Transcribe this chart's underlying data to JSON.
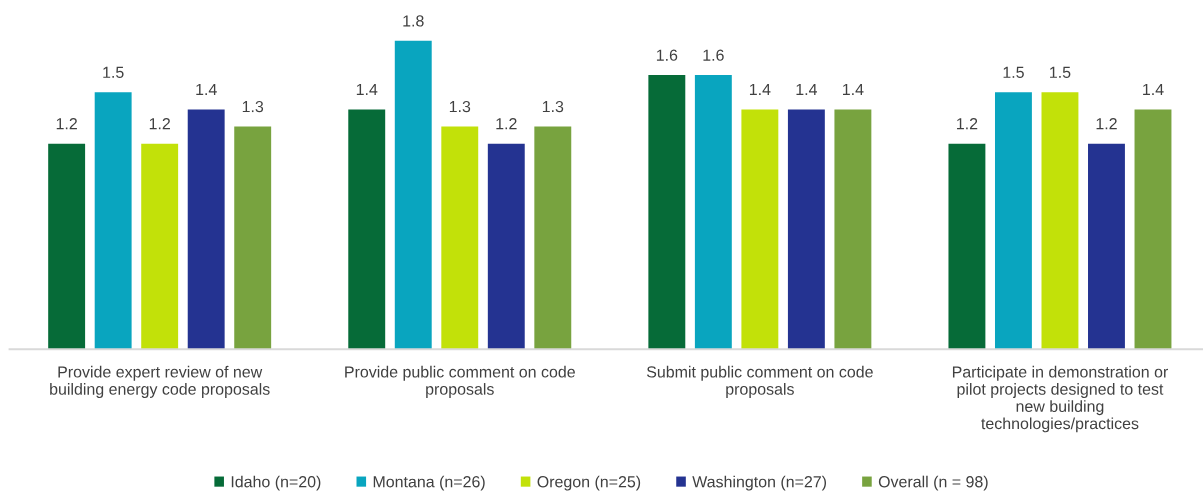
{
  "chart_data": {
    "type": "bar",
    "categories": [
      "Provide expert review of new\nbuilding energy code proposals",
      "Provide public comment on code\nproposals",
      "Submit public comment on code\nproposals",
      "Participate in demonstration or\npilot projects designed to test\nnew building\ntechnologies/practices"
    ],
    "series": [
      {
        "name": "Idaho (n=20)",
        "color": "#066b38",
        "values": [
          1.2,
          1.4,
          1.6,
          1.2
        ]
      },
      {
        "name": "Montana (n=26)",
        "color": "#09a5bf",
        "values": [
          1.5,
          1.8,
          1.6,
          1.5
        ]
      },
      {
        "name": "Oregon (n=25)",
        "color": "#c2e109",
        "values": [
          1.2,
          1.3,
          1.4,
          1.5
        ]
      },
      {
        "name": "Washington (n=27)",
        "color": "#243391",
        "values": [
          1.4,
          1.2,
          1.4,
          1.2
        ]
      },
      {
        "name": "Overall (n = 98)",
        "color": "#78a33f",
        "values": [
          1.3,
          1.3,
          1.4,
          1.4
        ]
      }
    ],
    "data_labels": true,
    "legend": "bottom",
    "grid": false,
    "tick_labels": "x"
  }
}
